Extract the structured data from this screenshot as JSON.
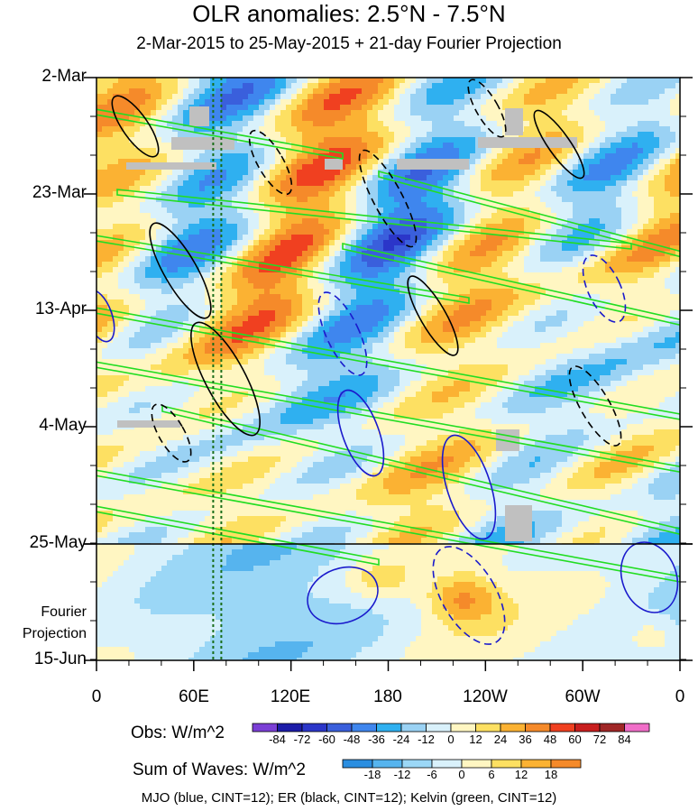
{
  "title": "OLR anomalies: 2.5°N - 7.5°N",
  "subtitle": "2-Mar-2015 to 25-May-2015 + 21-day Fourier Projection",
  "chart_data": {
    "type": "heatmap",
    "title": "OLR anomalies: 2.5°N - 7.5°N",
    "subtitle": "2-Mar-2015 to 25-May-2015 + 21-day Fourier Projection",
    "x_ticks": [
      "0",
      "60E",
      "120E",
      "180",
      "120W",
      "60W",
      "0"
    ],
    "x_range_degE": [
      0,
      360
    ],
    "y_ticks": [
      "2-Mar",
      "23-Mar",
      "13-Apr",
      "4-May",
      "25-May",
      "15-Jun"
    ],
    "y_range": [
      "2-Mar-2015",
      "15-Jun-2015"
    ],
    "projection_start": "25-May",
    "projection_label": "Fourier Projection",
    "obs_colorbar": {
      "label": "Obs: W/m^2",
      "levels": [
        -84,
        -72,
        -60,
        -48,
        -36,
        -24,
        -12,
        0,
        12,
        24,
        36,
        48,
        60,
        72,
        84
      ],
      "colors": [
        "#7b3fd6",
        "#1c1ca8",
        "#2b36c9",
        "#3a5fdc",
        "#3f86ee",
        "#2fb0f0",
        "#9ad2f4",
        "#d9f1fb",
        "#fff6c2",
        "#fde062",
        "#fbb233",
        "#f58a2a",
        "#f04020",
        "#c81e1e",
        "#a02626",
        "#f06ec8"
      ]
    },
    "waves_colorbar": {
      "label": "Sum of Waves: W/m^2",
      "levels": [
        -18,
        -12,
        -6,
        0,
        6,
        12,
        18
      ],
      "colors": [
        "#2b8ee0",
        "#56b4ee",
        "#9bd7f6",
        "#d9f1fb",
        "#fff6c2",
        "#fde062",
        "#fbb233",
        "#f58a2a"
      ]
    },
    "contour_series": [
      {
        "name": "MJO",
        "color": "#1a1acc",
        "cint": 12
      },
      {
        "name": "ER",
        "color": "#000000",
        "cint": 12
      },
      {
        "name": "Kelvin",
        "color": "#22dd22",
        "cint": 12
      }
    ],
    "reference_lines_degE": [
      72,
      77
    ]
  },
  "y_labels": {
    "t0": "2-Mar",
    "t1": "23-Mar",
    "t2": "13-Apr",
    "t3": "4-May",
    "t4": "25-May",
    "t5": "15-Jun"
  },
  "x_labels": {
    "t0": "0",
    "t1": "60E",
    "t2": "120E",
    "t3": "180",
    "t4": "120W",
    "t5": "60W",
    "t6": "0"
  },
  "fourier_label_1": "Fourier",
  "fourier_label_2": "Projection",
  "obs_label": "Obs: W/m^2",
  "waves_label": "Sum of Waves: W/m^2",
  "footnote": "MJO (blue, CINT=12); ER (black, CINT=12); Kelvin (green, CINT=12)"
}
